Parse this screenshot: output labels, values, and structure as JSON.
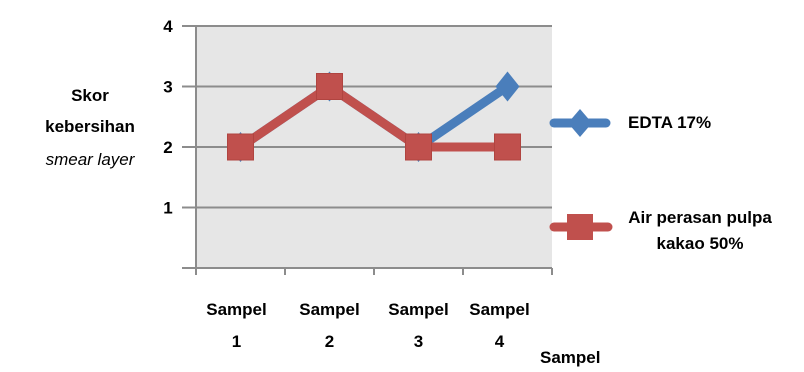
{
  "chart_data": {
    "type": "line",
    "categories": [
      "Sampel 1",
      "Sampel 2",
      "Sampel 3",
      "Sampel 4"
    ],
    "ylim": [
      0,
      4
    ],
    "yticks": [
      "1",
      "2",
      "3",
      "4"
    ],
    "ylabel_lines": [
      "Skor",
      "kebersihan",
      "smear layer"
    ],
    "xlabel": "Sampel",
    "grid": true,
    "legend_position": "right",
    "series": [
      {
        "name": "EDTA 17%",
        "values": [
          2,
          3,
          2,
          3
        ],
        "color": "#4a7ebb",
        "marker": "diamond"
      },
      {
        "name": "Air perasan pulpa kakao 50%",
        "values": [
          2,
          3,
          2,
          2
        ],
        "color": "#c0504d",
        "marker": "square"
      }
    ],
    "legend": {
      "edta": {
        "line1": "EDTA 17%"
      },
      "air": {
        "line1": "Air perasan pulpa",
        "line2": "kakao 50%"
      }
    },
    "plot_background": "#e6e6e6"
  }
}
